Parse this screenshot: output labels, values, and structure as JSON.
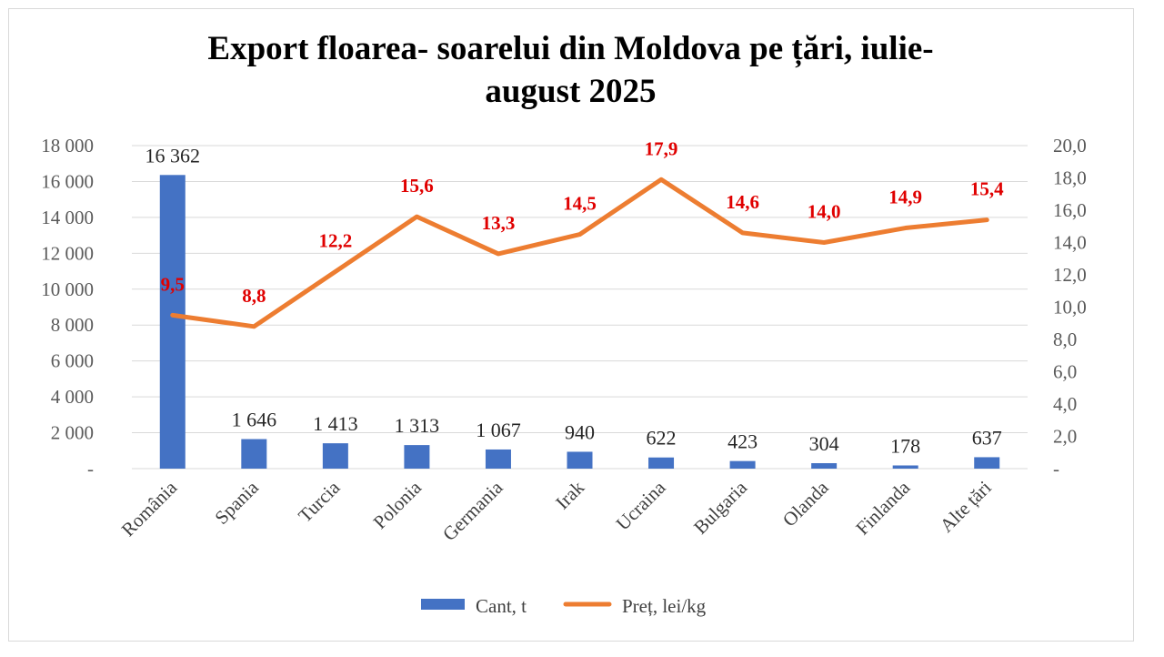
{
  "chart_data": {
    "type": "bar",
    "title": "Export floarea- soarelui din Moldova pe țări, iulie-august 2025",
    "title_lines": [
      "Export floarea- soarelui din Moldova pe țări, iulie-",
      "august 2025"
    ],
    "categories": [
      "România",
      "Spania",
      "Turcia",
      "Polonia",
      "Germania",
      "Irak",
      "Ucraina",
      "Bulgaria",
      "Olanda",
      "Finlanda",
      "Alte țări"
    ],
    "series": [
      {
        "name": "Cant, t",
        "type": "bar",
        "axis": "left",
        "color": "#4472c4",
        "values": [
          16362,
          1646,
          1413,
          1313,
          1067,
          940,
          622,
          423,
          304,
          178,
          637
        ],
        "labels": [
          "16 362",
          "1 646",
          "1 413",
          "1 313",
          "1 067",
          "940",
          "622",
          "423",
          "304",
          "178",
          "637"
        ]
      },
      {
        "name": "Preț, lei/kg",
        "type": "line",
        "axis": "right",
        "color": "#ed7d31",
        "values": [
          9.5,
          8.8,
          12.2,
          15.6,
          13.3,
          14.5,
          17.9,
          14.6,
          14.0,
          14.9,
          15.4
        ],
        "labels": [
          "9,5",
          "8,8",
          "12,2",
          "15,6",
          "13,3",
          "14,5",
          "17,9",
          "14,6",
          "14,0",
          "14,9",
          "15,4"
        ],
        "label_color": "#e00000"
      }
    ],
    "y_left": {
      "ylim": [
        0,
        18000
      ],
      "ticks": [
        0,
        2000,
        4000,
        6000,
        8000,
        10000,
        12000,
        14000,
        16000,
        18000
      ],
      "tick_labels": [
        "-",
        "2 000",
        "4 000",
        "6 000",
        "8 000",
        "10 000",
        "12 000",
        "14 000",
        "16 000",
        "18 000"
      ]
    },
    "y_right": {
      "ylim": [
        0,
        20
      ],
      "ticks": [
        0,
        2,
        4,
        6,
        8,
        10,
        12,
        14,
        16,
        18,
        20
      ],
      "tick_labels": [
        "-",
        "2,0",
        "4,0",
        "6,0",
        "8,0",
        "10,0",
        "12,0",
        "14,0",
        "16,0",
        "18,0",
        "20,0"
      ]
    },
    "xlabel": "",
    "ylabel": "",
    "grid": true,
    "legend": "bottom"
  }
}
